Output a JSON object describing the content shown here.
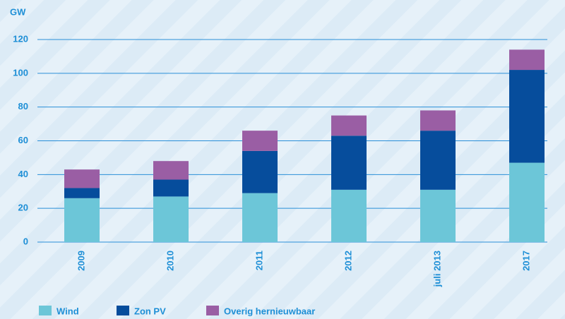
{
  "chart_data": {
    "type": "stacked_bar",
    "y_label": "GW",
    "categories": [
      "2009",
      "2010",
      "2011",
      "2012",
      "juli 2013",
      "2017"
    ],
    "series": [
      {
        "name": "Wind",
        "color": "#6cc6d8",
        "values": [
          26,
          27,
          29,
          31,
          31,
          47
        ]
      },
      {
        "name": "Zon PV",
        "color": "#064d9c",
        "values": [
          6,
          10,
          25,
          32,
          35,
          55
        ]
      },
      {
        "name": "Overig hernieuwbaar",
        "color": "#9a5ea4",
        "values": [
          11,
          11,
          12,
          12,
          12,
          12
        ]
      }
    ],
    "ylim": [
      0,
      120
    ],
    "yticks": [
      0,
      20,
      40,
      60,
      80,
      100,
      120
    ],
    "grid": true
  }
}
